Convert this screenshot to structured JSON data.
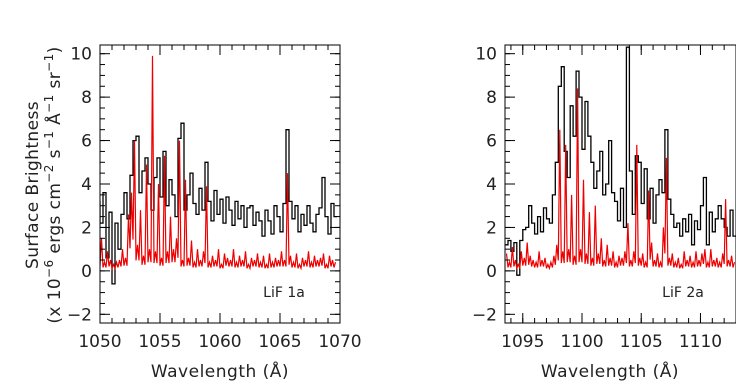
{
  "ylabel_line1": "Surface Brightness",
  "ylabel_line2_parts": [
    "(x 10",
    "−6",
    " ergs cm",
    "−2",
    " s",
    "−1",
    " Å",
    "−1",
    " sr",
    "−1",
    ")"
  ],
  "colors": {
    "data": "#000000",
    "model": "#ee0000",
    "axis": "#000000"
  },
  "chart_data": [
    {
      "type": "line",
      "panel_label": "LiF  1a",
      "xlabel": "Wavelength (Å)",
      "ylabel": "",
      "xlim": [
        1050,
        1070
      ],
      "ylim": [
        -2.4,
        10.4
      ],
      "xticks": [
        "1050",
        "1055",
        "1060",
        "1065",
        "1070"
      ],
      "yticks": [
        "-2",
        "0",
        "2",
        "4",
        "6",
        "8",
        "10"
      ],
      "x_start": 1049.5,
      "x_step": 0.25,
      "series": [
        {
          "style": "step",
          "values": [
            2.5,
            3.2,
            2.2,
            3.6,
            0.6,
            2.7,
            -0.6,
            2.2,
            1.0,
            2.6,
            3.6,
            2.4,
            4.4,
            6.0,
            6.2,
            3.6,
            4.6,
            5.2,
            4.0,
            2.8,
            4.3,
            5.2,
            3.4,
            5.5,
            3.0,
            4.2,
            3.5,
            2.5,
            6.1,
            6.8,
            2.8,
            3.5,
            4.5,
            3.1,
            2.6,
            3.8,
            2.8,
            5.0,
            3.2,
            2.3,
            3.7,
            2.6,
            3.3,
            2.2,
            3.4,
            2.8,
            2.1,
            3.2,
            2.4,
            3.0,
            2.0,
            2.9,
            3.0,
            2.1,
            2.7,
            2.3,
            1.6,
            2.8,
            2.3,
            1.7,
            3.0,
            2.5,
            1.8,
            3.1,
            6.5,
            3.2,
            2.4,
            3.0,
            1.8,
            2.6,
            2.1,
            3.0,
            2.2,
            1.8,
            2.6,
            2.9,
            4.3,
            2.5,
            1.7,
            3.1,
            2.5
          ]
        },
        {
          "style": "line",
          "values": [
            1.3,
            0.6,
            1.5,
            0.4,
            0.9,
            0.5,
            0.3,
            0.4,
            0.5,
            1.0,
            0.6,
            2.6,
            3.6,
            6.0,
            1.2,
            2.8,
            0.7,
            4.9,
            1.0,
            9.9,
            0.9,
            4.0,
            0.6,
            5.3,
            0.9,
            2.5,
            1.0,
            1.5,
            6.0,
            0.5,
            4.2,
            0.6,
            1.4,
            0.4,
            1.0,
            0.5,
            0.9,
            3.9,
            0.4,
            0.7,
            0.5,
            1.0,
            0.3,
            0.8,
            0.6,
            0.5,
            1.0,
            0.4,
            0.7,
            0.5,
            0.9,
            0.3,
            0.6,
            0.5,
            0.8,
            0.4,
            0.7,
            0.3,
            0.8,
            0.4,
            0.6,
            0.5,
            0.9,
            0.5,
            4.5,
            0.7,
            0.4,
            0.8,
            0.3,
            0.6,
            0.5,
            0.9,
            0.4,
            0.7,
            0.5,
            0.6,
            0.8,
            0.3,
            0.7,
            0.5,
            0.4
          ]
        }
      ]
    },
    {
      "type": "line",
      "panel_label": "LiF  2a",
      "xlabel": "Wavelength (Å)",
      "ylabel": "",
      "xlim": [
        1093.5,
        1113
      ],
      "ylim": [
        -2.4,
        10.4
      ],
      "xticks": [
        "1095",
        "1100",
        "1105",
        "1110"
      ],
      "yticks": [
        "-2",
        "0",
        "2",
        "4",
        "6",
        "8",
        "10"
      ],
      "x_start": 1093.5,
      "x_step": 0.25,
      "series": [
        {
          "style": "step",
          "values": [
            1.2,
            1.4,
            0.9,
            1.3,
            -0.2,
            1.4,
            1.9,
            2.0,
            3.0,
            2.2,
            1.7,
            2.5,
            1.8,
            2.9,
            2.4,
            2.2,
            3.5,
            5.0,
            8.5,
            9.4,
            5.5,
            4.3,
            7.6,
            6.2,
            9.2,
            8.0,
            5.6,
            7.8,
            6.2,
            5.0,
            3.8,
            4.6,
            5.5,
            3.5,
            4.0,
            6.0,
            3.6,
            3.2,
            2.3,
            3.8,
            2.0,
            10.3,
            4.6,
            2.6,
            5.3,
            5.0,
            3.1,
            4.7,
            2.4,
            3.8,
            2.2,
            3.5,
            4.2,
            3.6,
            6.5,
            3.3,
            2.6,
            2.0,
            2.2,
            1.6,
            2.4,
            1.8,
            2.6,
            1.2,
            2.3,
            1.9,
            3.0,
            4.3,
            1.2,
            2.7,
            1.8,
            2.4,
            3.0,
            2.4,
            2.0,
            1.6,
            2.8,
            1.6
          ]
        },
        {
          "style": "line",
          "values": [
            0.8,
            0.4,
            1.1,
            0.5,
            0.3,
            0.9,
            0.6,
            1.3,
            0.7,
            0.5,
            0.4,
            0.9,
            0.5,
            0.6,
            0.3,
            0.4,
            0.7,
            1.2,
            6.5,
            0.9,
            5.8,
            1.0,
            3.5,
            0.7,
            8.4,
            1.0,
            4.2,
            0.8,
            2.7,
            0.6,
            3.0,
            0.8,
            1.5,
            0.5,
            1.2,
            0.6,
            0.9,
            0.4,
            0.7,
            0.6,
            0.9,
            2.2,
            0.5,
            0.9,
            5.8,
            0.6,
            0.8,
            0.4,
            3.7,
            1.3,
            0.5,
            0.8,
            0.4,
            2.0,
            5.2,
            0.6,
            0.8,
            0.4,
            0.6,
            0.3,
            0.9,
            0.5,
            0.7,
            0.4,
            0.9,
            0.5,
            0.8,
            1.0,
            0.4,
            1.0,
            0.5,
            0.6,
            0.4,
            0.8,
            3.3,
            0.5,
            0.7,
            0.4
          ]
        }
      ]
    }
  ]
}
